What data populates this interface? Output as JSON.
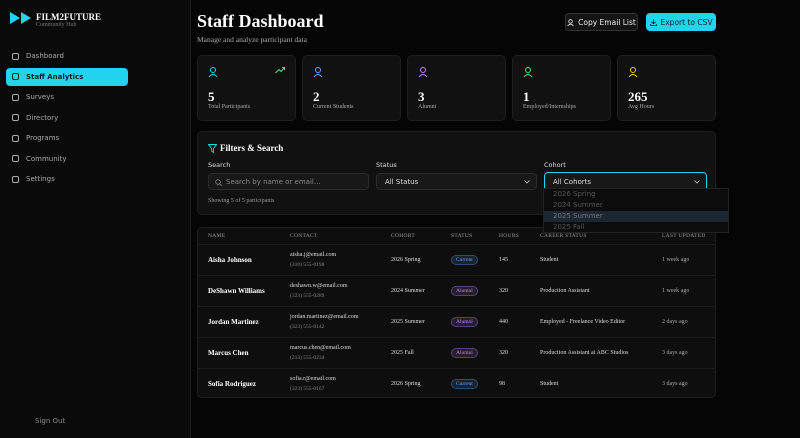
{
  "brand": {
    "name": "FILM2FUTURE",
    "tagline": "Community Hub"
  },
  "nav": [
    "Dashboard",
    "Staff Analytics",
    "Surveys",
    "Directory",
    "Programs",
    "Community",
    "Settings"
  ],
  "sign_out": "Sign Out",
  "header": {
    "title": "Staff Dashboard",
    "subtitle": "Manage and analyze participant data",
    "buttons": [
      "Copy Email List",
      "Export to CSV"
    ]
  },
  "stats": [
    {
      "value": 5,
      "label": "Total Participants",
      "color": "#22d3ee"
    },
    {
      "value": 2,
      "label": "Current Students",
      "color": "#60a5fa"
    },
    {
      "value": 3,
      "label": "Alumni",
      "color": "#c084fc"
    },
    {
      "value": 1,
      "label": "Employed/Internships",
      "color": "#4ade80"
    },
    {
      "value": 265,
      "label": "Avg Hours",
      "color": "#facc15"
    }
  ],
  "filters": {
    "title": "Filters & Search",
    "search_label": "Search",
    "search_placeholder": "Search by name or email...",
    "status_label": "Status",
    "status_value": "All Status",
    "cohort_label": "Cohort",
    "cohort_value": "All Cohorts",
    "cohort_options": [
      "2026 Spring",
      "2024 Summer",
      "2025 Summer",
      "2025 Fall"
    ],
    "count_text": "Showing 5 of 5 participants"
  },
  "table": {
    "columns": [
      "NAME",
      "CONTACT",
      "COHORT",
      "STATUS",
      "HOURS",
      "CAREER STATUS",
      "LAST UPDATED"
    ],
    "rows": [
      {
        "name": "Aisha Johnson",
        "email": "aisha.j@email.com",
        "phone": "(310) 555-0198",
        "cohort": "2026 Spring",
        "status": "Current",
        "status_color": "#60a5fa",
        "hours": 145,
        "career": "Student",
        "updated": "1 week ago"
      },
      {
        "name": "DeShawn Williams",
        "email": "deshawn.w@email.com",
        "phone": "(323) 555-0289",
        "cohort": "2024 Summer",
        "status": "Alumni",
        "status_color": "#c084fc",
        "hours": 320,
        "career": "Production Assistant",
        "updated": "1 week ago"
      },
      {
        "name": "Jordan Martinez",
        "email": "jordan.martinez@email.com",
        "phone": "(323) 555-0142",
        "cohort": "2025 Summer",
        "status": "Alumni",
        "status_color": "#c084fc",
        "hours": 440,
        "career": "Employed - Freelance Video Editor",
        "updated": "2 days ago"
      },
      {
        "name": "Marcus Chen",
        "email": "marcus.chen@email.com",
        "phone": "(213) 555-0234",
        "cohort": "2025 Fall",
        "status": "Alumni",
        "status_color": "#c084fc",
        "hours": 320,
        "career": "Production Assistant at ABC Studios",
        "updated": "3 days ago"
      },
      {
        "name": "Sofia Rodriguez",
        "email": "sofia.r@email.com",
        "phone": "(323) 555-0167",
        "cohort": "2026 Spring",
        "status": "Current",
        "status_color": "#60a5fa",
        "hours": 98,
        "career": "Student",
        "updated": "3 days ago"
      }
    ]
  }
}
